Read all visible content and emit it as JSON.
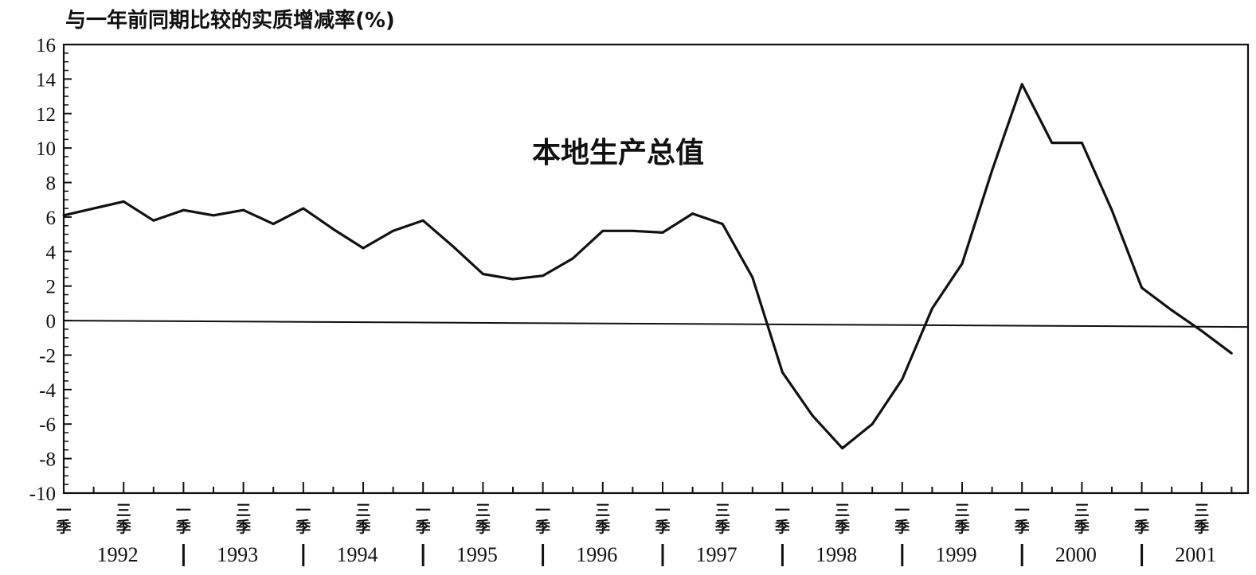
{
  "chart_data": {
    "type": "line",
    "title": "与一年前同期比较的实质增减率(%)",
    "series_label": "本地生产总值",
    "ylim": [
      -10,
      16
    ],
    "yticks": [
      "16",
      "14",
      "12",
      "10",
      "8",
      "6",
      "4",
      "2",
      "0",
      "-2",
      "-4",
      "-6",
      "-8",
      "-10"
    ],
    "years": [
      "1992",
      "1993",
      "1994",
      "1995",
      "1996",
      "1997",
      "1998",
      "1999",
      "2000",
      "2001"
    ],
    "quarter_labels": {
      "q1": "一季",
      "q3": "三季"
    },
    "grid": false,
    "legend": "none",
    "line_color": "#111111",
    "series": [
      {
        "name": "本地生产总值",
        "x": [
          "1992 Q1",
          "1992 Q2",
          "1992 Q3",
          "1992 Q4",
          "1993 Q1",
          "1993 Q2",
          "1993 Q3",
          "1993 Q4",
          "1994 Q1",
          "1994 Q2",
          "1994 Q3",
          "1994 Q4",
          "1995 Q1",
          "1995 Q2",
          "1995 Q3",
          "1995 Q4",
          "1996 Q1",
          "1996 Q2",
          "1996 Q3",
          "1996 Q4",
          "1997 Q1",
          "1997 Q2",
          "1997 Q3",
          "1997 Q4",
          "1998 Q1",
          "1998 Q2",
          "1998 Q3",
          "1998 Q4",
          "1999 Q1",
          "1999 Q2",
          "1999 Q3",
          "1999 Q4",
          "2000 Q1",
          "2000 Q2",
          "2000 Q3",
          "2000 Q4",
          "2001 Q1",
          "2001 Q2",
          "2001 Q3",
          "2001 Q4"
        ],
        "values": [
          6.1,
          6.5,
          6.9,
          5.8,
          6.4,
          6.1,
          6.4,
          5.6,
          6.5,
          5.3,
          4.2,
          5.2,
          5.8,
          4.3,
          2.7,
          2.4,
          2.6,
          3.6,
          5.2,
          5.2,
          5.1,
          6.2,
          5.6,
          2.5,
          -3.0,
          -5.5,
          -7.4,
          -6.0,
          -3.4,
          0.7,
          3.3,
          8.7,
          13.7,
          10.3,
          10.3,
          6.4,
          1.9,
          0.6,
          -0.6,
          -1.9
        ]
      }
    ],
    "baseline": {
      "value": 0,
      "label": "0"
    }
  }
}
